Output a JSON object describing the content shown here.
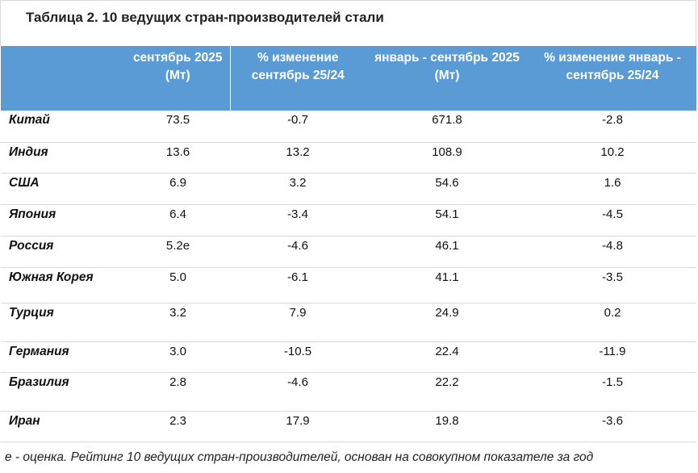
{
  "title": "Таблица 2. 10 ведущих стран-производителей стали",
  "columns": [
    "",
    "сентябрь 2025 (Мт)",
    "% изменение сентябрь 25/24",
    "январь - сентябрь 2025 (Мт)",
    "% изменение январь - сентябрь 25/24"
  ],
  "rows": [
    {
      "country": "Китай",
      "sep_2025": "73.5",
      "sep_change": "-0.7",
      "ytd_2025": "671.8",
      "ytd_change": "-2.8"
    },
    {
      "country": "Индия",
      "sep_2025": "13.6",
      "sep_change": "13.2",
      "ytd_2025": "108.9",
      "ytd_change": "10.2"
    },
    {
      "country": "США",
      "sep_2025": "6.9",
      "sep_change": "3.2",
      "ytd_2025": "54.6",
      "ytd_change": "1.6"
    },
    {
      "country": "Япония",
      "sep_2025": "6.4",
      "sep_change": "-3.4",
      "ytd_2025": "54.1",
      "ytd_change": "-4.5"
    },
    {
      "country": "Россия",
      "sep_2025": "5.2e",
      "sep_change": "-4.6",
      "ytd_2025": "46.1",
      "ytd_change": "-4.8"
    },
    {
      "country": "Южная Корея",
      "sep_2025": "5.0",
      "sep_change": "-6.1",
      "ytd_2025": "41.1",
      "ytd_change": "-3.5"
    },
    {
      "country": "Турция",
      "sep_2025": "3.2",
      "sep_change": "7.9",
      "ytd_2025": "24.9",
      "ytd_change": "0.2"
    },
    {
      "country": "Германия",
      "sep_2025": "3.0",
      "sep_change": "-10.5",
      "ytd_2025": "22.4",
      "ytd_change": "-11.9"
    },
    {
      "country": "Бразилия",
      "sep_2025": "2.8",
      "sep_change": "-4.6",
      "ytd_2025": "22.2",
      "ytd_change": "-1.5"
    },
    {
      "country": "Иран",
      "sep_2025": "2.3",
      "sep_change": "17.9",
      "ytd_2025": "19.8",
      "ytd_change": "-3.6"
    }
  ],
  "footnote": "e - оценка. Рейтинг 10 ведущих стран-производителей, основан на совокупном показателе за год",
  "colors": {
    "header_bg": "#5b9bd5",
    "header_text": "#ffffff",
    "row_border": "#d9d9d9"
  }
}
